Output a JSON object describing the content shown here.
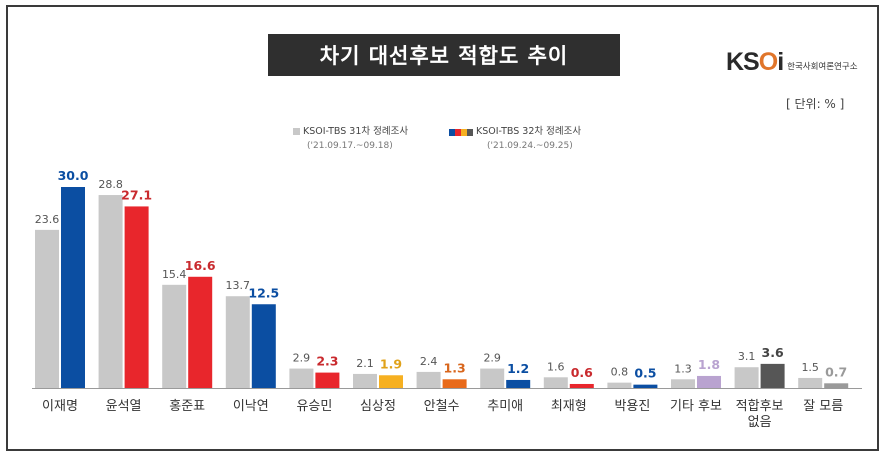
{
  "title": "차기 대선후보 적합도 추이",
  "logo": {
    "mark_a": "KS",
    "mark_b": "O",
    "mark_c": "i",
    "name": "한국사회여론연구소"
  },
  "unit": "[ 단위: % ]",
  "legend": [
    {
      "label": "KSOI-TBS 31차 정례조사",
      "date": "('21.09.17.~09.18)"
    },
    {
      "label": "KSOI-TBS 32차 정례조사",
      "date": "('21.09.24.~09.25)"
    }
  ],
  "chart_data": {
    "type": "bar",
    "title": "차기 대선후보 적합도 추이",
    "categories": [
      "이재명",
      "윤석열",
      "홍준표",
      "이낙연",
      "유승민",
      "심상정",
      "안철수",
      "추미애",
      "최재형",
      "박용진",
      "기타 후보",
      "적합후보\n없음",
      "잘 모름"
    ],
    "series": [
      {
        "name": "KSOI-TBS 31차 정례조사",
        "values": [
          23.6,
          28.8,
          15.4,
          13.7,
          2.9,
          2.1,
          2.4,
          2.9,
          1.6,
          0.8,
          1.3,
          3.1,
          1.5
        ]
      },
      {
        "name": "KSOI-TBS 32차 정례조사",
        "values": [
          30.0,
          27.1,
          16.6,
          12.5,
          2.3,
          1.9,
          1.3,
          1.2,
          0.6,
          0.5,
          1.8,
          3.6,
          0.7
        ]
      }
    ],
    "series1_color": "#c8c8c8",
    "series2_colors": [
      "#0b4ea2",
      "#e8262c",
      "#e8262c",
      "#0b4ea2",
      "#e8262c",
      "#f6b021",
      "#e86a1a",
      "#0b4ea2",
      "#e8262c",
      "#0b4ea2",
      "#b9a3d0",
      "#565656",
      "#9a9a9a"
    ],
    "label2_colors": [
      "#0b4ea2",
      "#c92a2e",
      "#c92a2e",
      "#0b4ea2",
      "#c92a2e",
      "#e0a21a",
      "#d8661c",
      "#0b4ea2",
      "#c92a2e",
      "#0b4ea2",
      "#b9a3d0",
      "#444444",
      "#9a9a9a"
    ],
    "ylim": [
      0,
      30
    ],
    "grid": false
  }
}
